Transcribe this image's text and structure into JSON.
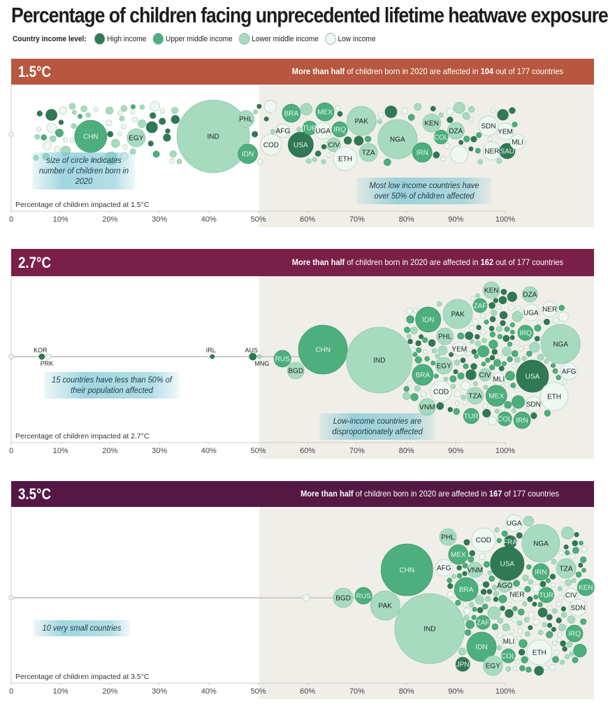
{
  "title": "Percentage of children facing unprecedented lifetime heatwave exposure",
  "legend": {
    "label": "Country income level:",
    "items": [
      {
        "key": "high",
        "label": "High income",
        "color": "#2f7a55"
      },
      {
        "key": "upper",
        "label": "Upper middle income",
        "color": "#4caf7d"
      },
      {
        "key": "lower",
        "label": "Lower middle income",
        "color": "#a6dbc0"
      },
      {
        "key": "low",
        "label": "Low income",
        "color": "#eef7f2"
      }
    ]
  },
  "colors": {
    "shade": "#f0eee8",
    "axis": "#bbbbbb"
  },
  "chart_data": [
    {
      "type": "scatter",
      "title": "1.5°C",
      "header_color": "#b8573f",
      "summary": {
        "pre": "More than half",
        "mid": " of children born in 2020 are affected in ",
        "count": "104",
        "post": " out of 177 countries"
      },
      "xlabel": "Percentage of children impacted at 1.5°C",
      "xlim": [
        0,
        100
      ],
      "ticks": [
        "0",
        "10%",
        "20%",
        "30%",
        "40%",
        "50%",
        "60%",
        "70%",
        "80%",
        "90%",
        "100%"
      ],
      "annotations": [
        {
          "text": "size of circle indicates number of children born in 2020"
        },
        {
          "text": "Most low income countries have over 50% of children affected"
        }
      ],
      "countries": [
        {
          "code": "CHN",
          "income": "upper",
          "x": 16.1
        },
        {
          "code": "EGY",
          "income": "lower",
          "x": 25.3
        },
        {
          "code": "IND",
          "income": "lower",
          "x": 40.9
        },
        {
          "code": "PHL",
          "income": "lower",
          "x": 47.5
        },
        {
          "code": "IDN",
          "income": "upper",
          "x": 47.9
        },
        {
          "code": "COD",
          "income": "low",
          "x": 52.6
        },
        {
          "code": "AFG",
          "income": "low",
          "x": 55.0
        },
        {
          "code": "BRA",
          "income": "upper",
          "x": 56.7
        },
        {
          "code": "USA",
          "income": "high",
          "x": 58.6
        },
        {
          "code": "TUR",
          "income": "upper",
          "x": 60.4
        },
        {
          "code": "UGA",
          "income": "low",
          "x": 63.1
        },
        {
          "code": "MEX",
          "income": "upper",
          "x": 63.5
        },
        {
          "code": "CIV",
          "income": "lower",
          "x": 65.3
        },
        {
          "code": "IRQ",
          "income": "upper",
          "x": 66.5
        },
        {
          "code": "ETH",
          "income": "low",
          "x": 67.6
        },
        {
          "code": "PAK",
          "income": "lower",
          "x": 70.9
        },
        {
          "code": "TZA",
          "income": "lower",
          "x": 72.3
        },
        {
          "code": "NGA",
          "income": "lower",
          "x": 78.2
        },
        {
          "code": "IRN",
          "income": "upper",
          "x": 83.2
        },
        {
          "code": "KEN",
          "income": "lower",
          "x": 85.1
        },
        {
          "code": "COL",
          "income": "upper",
          "x": 87.0
        },
        {
          "code": "DZA",
          "income": "lower",
          "x": 90.0
        },
        {
          "code": "SDN",
          "income": "low",
          "x": 96.6
        },
        {
          "code": "NER",
          "income": "low",
          "x": 97.3
        },
        {
          "code": "YEM",
          "income": "low",
          "x": 100.0
        },
        {
          "code": "SAU",
          "income": "high",
          "x": 100.4
        },
        {
          "code": "MLI",
          "income": "low",
          "x": 102.5
        }
      ]
    },
    {
      "type": "scatter",
      "title": "2.7°C",
      "header_color": "#7a2048",
      "summary": {
        "pre": "More than half",
        "mid": " of children born in 2020 are affected in ",
        "count": "162",
        "post": " out of 177 countries"
      },
      "xlabel": "Percentage of children impacted at 2.7°C",
      "xlim": [
        0,
        100
      ],
      "ticks": [
        "0",
        "10%",
        "20%",
        "30%",
        "40%",
        "50%",
        "60%",
        "70%",
        "80%",
        "90%",
        "100%"
      ],
      "annotations": [
        {
          "text": "15 countries have less than 50% of their population affected"
        },
        {
          "text": "Low-income countries are disproportionately affected"
        }
      ],
      "countries": [
        {
          "code": "KOR",
          "income": "high",
          "x": 6.2
        },
        {
          "code": "PRK",
          "income": "low",
          "x": 7.5
        },
        {
          "code": "IRL",
          "income": "high",
          "x": 40.7
        },
        {
          "code": "AUS",
          "income": "high",
          "x": 48.9
        },
        {
          "code": "MNG",
          "income": "lower",
          "x": 50.2
        },
        {
          "code": "RUS",
          "income": "upper",
          "x": 54.9
        },
        {
          "code": "BGD",
          "income": "lower",
          "x": 57.6
        },
        {
          "code": "CHN",
          "income": "upper",
          "x": 63.1
        },
        {
          "code": "IND",
          "income": "lower",
          "x": 74.5
        },
        {
          "code": "BRA",
          "income": "upper",
          "x": 83.3
        },
        {
          "code": "VNM",
          "income": "lower",
          "x": 84.2
        },
        {
          "code": "IDN",
          "income": "upper",
          "x": 84.4
        },
        {
          "code": "COD",
          "income": "low",
          "x": 87.0
        },
        {
          "code": "EGY",
          "income": "lower",
          "x": 87.6
        },
        {
          "code": "PHL",
          "income": "lower",
          "x": 87.8
        },
        {
          "code": "PAK",
          "income": "lower",
          "x": 90.4
        },
        {
          "code": "YEM",
          "income": "low",
          "x": 90.7
        },
        {
          "code": "TUR",
          "income": "upper",
          "x": 93.1
        },
        {
          "code": "TZA",
          "income": "lower",
          "x": 93.9
        },
        {
          "code": "ZAF",
          "income": "upper",
          "x": 94.9
        },
        {
          "code": "CIV",
          "income": "lower",
          "x": 95.9
        },
        {
          "code": "KEN",
          "income": "lower",
          "x": 97.2
        },
        {
          "code": "MEX",
          "income": "upper",
          "x": 98.2
        },
        {
          "code": "MLI",
          "income": "low",
          "x": 98.7
        },
        {
          "code": "COL",
          "income": "upper",
          "x": 99.9
        },
        {
          "code": "IRN",
          "income": "upper",
          "x": 103.4
        },
        {
          "code": "IRQ",
          "income": "upper",
          "x": 104.1
        },
        {
          "code": "DZA",
          "income": "lower",
          "x": 105.0
        },
        {
          "code": "UGA",
          "income": "low",
          "x": 105.2
        },
        {
          "code": "USA",
          "income": "high",
          "x": 105.5
        },
        {
          "code": "SDN",
          "income": "low",
          "x": 105.7
        },
        {
          "code": "NER",
          "income": "low",
          "x": 109.0
        },
        {
          "code": "ETH",
          "income": "low",
          "x": 109.9
        },
        {
          "code": "NGA",
          "income": "lower",
          "x": 111.2
        },
        {
          "code": "AFG",
          "income": "low",
          "x": 112.9
        }
      ]
    },
    {
      "type": "scatter",
      "title": "3.5°C",
      "header_color": "#551845",
      "summary": {
        "pre": "More than half",
        "mid": " of children born in 2020 are affected in ",
        "count": "167",
        "post": " of 177 countries"
      },
      "xlabel": "Percentage of children impacted at 3.5°C",
      "xlim": [
        0,
        100
      ],
      "ticks": [
        "0",
        "10%",
        "20%",
        "30%",
        "40%",
        "50%",
        "60%",
        "70%",
        "80%",
        "90%",
        "100%"
      ],
      "annotations": [
        {
          "text": "10 very small countries"
        }
      ],
      "countries": [
        {
          "code": "",
          "income": "low",
          "x": 59.7
        },
        {
          "code": "BGD",
          "income": "lower",
          "x": 67.2
        },
        {
          "code": "RUS",
          "income": "upper",
          "x": 71.3
        },
        {
          "code": "PAK",
          "income": "lower",
          "x": 75.7
        },
        {
          "code": "CHN",
          "income": "upper",
          "x": 80.1
        },
        {
          "code": "IND",
          "income": "lower",
          "x": 84.7
        },
        {
          "code": "AFG",
          "income": "low",
          "x": 87.6
        },
        {
          "code": "PHL",
          "income": "lower",
          "x": 88.4
        },
        {
          "code": "MEX",
          "income": "upper",
          "x": 90.5
        },
        {
          "code": "JPN",
          "income": "high",
          "x": 91.4
        },
        {
          "code": "BRA",
          "income": "upper",
          "x": 92.1
        },
        {
          "code": "VNM",
          "income": "lower",
          "x": 93.9
        },
        {
          "code": "IDN",
          "income": "upper",
          "x": 95.2
        },
        {
          "code": "ZAF",
          "income": "upper",
          "x": 95.5
        },
        {
          "code": "COD",
          "income": "low",
          "x": 95.6
        },
        {
          "code": "EGY",
          "income": "lower",
          "x": 97.5
        },
        {
          "code": "AGO",
          "income": "lower",
          "x": 99.9
        },
        {
          "code": "USA",
          "income": "high",
          "x": 100.4
        },
        {
          "code": "COL",
          "income": "upper",
          "x": 100.6
        },
        {
          "code": "MLI",
          "income": "low",
          "x": 100.7
        },
        {
          "code": "FRA",
          "income": "high",
          "x": 101.0
        },
        {
          "code": "UGA",
          "income": "low",
          "x": 101.8
        },
        {
          "code": "NER",
          "income": "low",
          "x": 102.4
        },
        {
          "code": "ETH",
          "income": "low",
          "x": 106.9
        },
        {
          "code": "NGA",
          "income": "lower",
          "x": 107.2
        },
        {
          "code": "IRN",
          "income": "upper",
          "x": 107.2
        },
        {
          "code": "TUR",
          "income": "upper",
          "x": 108.3
        },
        {
          "code": "TZA",
          "income": "lower",
          "x": 112.3
        },
        {
          "code": "CIV",
          "income": "low",
          "x": 113.3
        },
        {
          "code": "IRQ",
          "income": "upper",
          "x": 114.0
        },
        {
          "code": "SDN",
          "income": "low",
          "x": 114.7
        },
        {
          "code": "KEN",
          "income": "upper",
          "x": 116.3
        }
      ]
    }
  ]
}
